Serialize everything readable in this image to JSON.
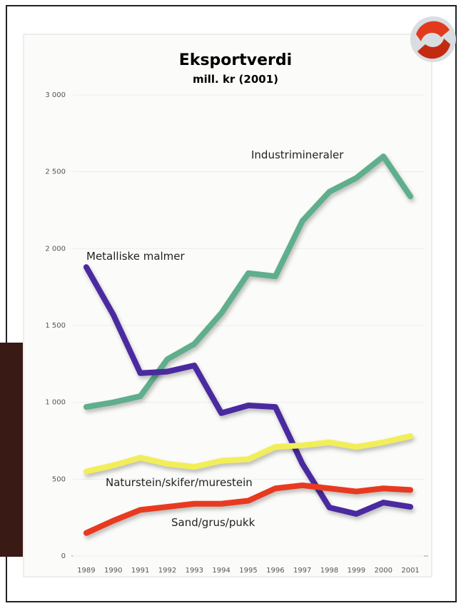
{
  "chart_data": {
    "type": "line",
    "title": "Eksportverdi",
    "subtitle": "mill. kr (2001)",
    "categories": [
      "1989",
      "1990",
      "1991",
      "1992",
      "1993",
      "1994",
      "1995",
      "1996",
      "1997",
      "1998",
      "1999",
      "2000",
      "2001"
    ],
    "series": [
      {
        "name": "Industrimineraler",
        "color": "#5fae8c",
        "values": [
          970,
          1000,
          1040,
          1280,
          1380,
          1580,
          1840,
          1820,
          2180,
          2370,
          2460,
          2600,
          2340
        ]
      },
      {
        "name": "Metalliske malmer",
        "color": "#4a2aa0",
        "values": [
          1880,
          1570,
          1190,
          1200,
          1240,
          930,
          980,
          970,
          600,
          316,
          274,
          348,
          320
        ]
      },
      {
        "name": "Naturstein/skifer/murestein",
        "color": "#f2ee5a",
        "values": [
          550,
          590,
          640,
          600,
          580,
          620,
          630,
          710,
          720,
          740,
          710,
          740,
          780
        ]
      },
      {
        "name": "Sand/grus/pukk",
        "color": "#e83a20",
        "values": [
          150,
          230,
          300,
          320,
          340,
          340,
          360,
          440,
          460,
          440,
          420,
          440,
          430
        ]
      }
    ],
    "ylim": [
      0,
      3000
    ],
    "yticks": [
      0,
      500,
      {
        "value": 1000,
        "label": "1 000"
      },
      {
        "value": 1500,
        "label": "1 500"
      },
      {
        "value": 2000,
        "label": "2 000"
      },
      {
        "value": 2500,
        "label": "2 500"
      },
      {
        "value": 3000,
        "label": "3 000"
      }
    ],
    "grid": true
  }
}
